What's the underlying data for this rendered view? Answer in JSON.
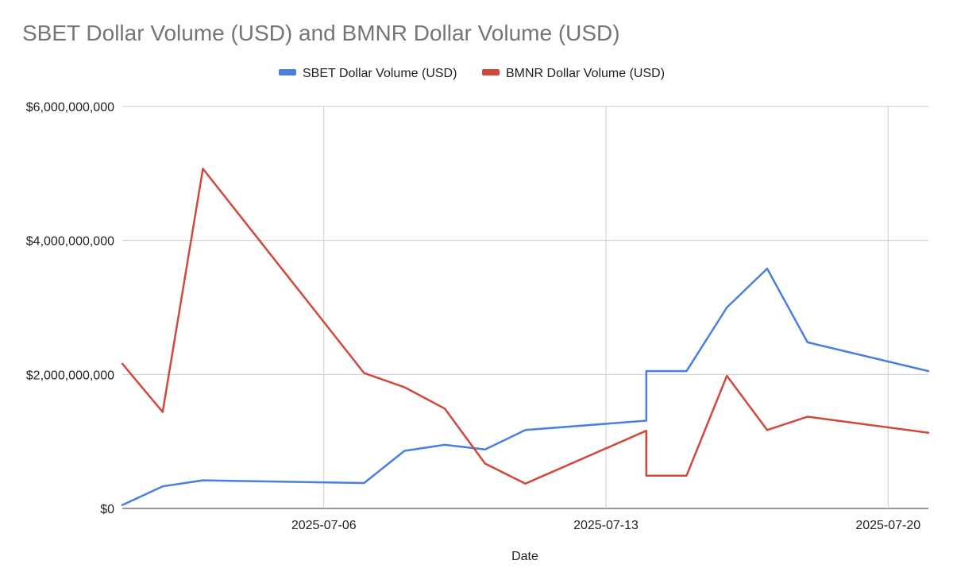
{
  "chart_data": {
    "type": "line",
    "title": "SBET Dollar Volume (USD) and BMNR Dollar Volume (USD)",
    "xlabel": "Date",
    "ylabel": "",
    "x": [
      "2025-07-01",
      "2025-07-02",
      "2025-07-03",
      "2025-07-07",
      "2025-07-08",
      "2025-07-09",
      "2025-07-10",
      "2025-07-11",
      "2025-07-14",
      "2025-07-14",
      "2025-07-15",
      "2025-07-16",
      "2025-07-17",
      "2025-07-18",
      "2025-07-21"
    ],
    "x_ticks": [
      "2025-07-06",
      "2025-07-13",
      "2025-07-20"
    ],
    "ylim": [
      0,
      6000000000
    ],
    "y_ticks": [
      "$0",
      "$2,000,000,000",
      "$4,000,000,000",
      "$6,000,000,000"
    ],
    "y_tick_values": [
      0,
      2000000000,
      4000000000,
      6000000000
    ],
    "grid": true,
    "legend_position": "top",
    "series": [
      {
        "name": "SBET Dollar Volume (USD)",
        "color": "#4a7fe0",
        "values": [
          50000000,
          330000000,
          420000000,
          380000000,
          860000000,
          950000000,
          880000000,
          1170000000,
          1310000000,
          2050000000,
          2050000000,
          3000000000,
          3580000000,
          2480000000,
          2050000000
        ]
      },
      {
        "name": "BMNR Dollar Volume (USD)",
        "color": "#d2483b",
        "values": [
          2160000000,
          1440000000,
          5070000000,
          2020000000,
          1810000000,
          1490000000,
          670000000,
          370000000,
          1160000000,
          490000000,
          490000000,
          1980000000,
          1170000000,
          1370000000,
          1130000000
        ]
      }
    ]
  }
}
